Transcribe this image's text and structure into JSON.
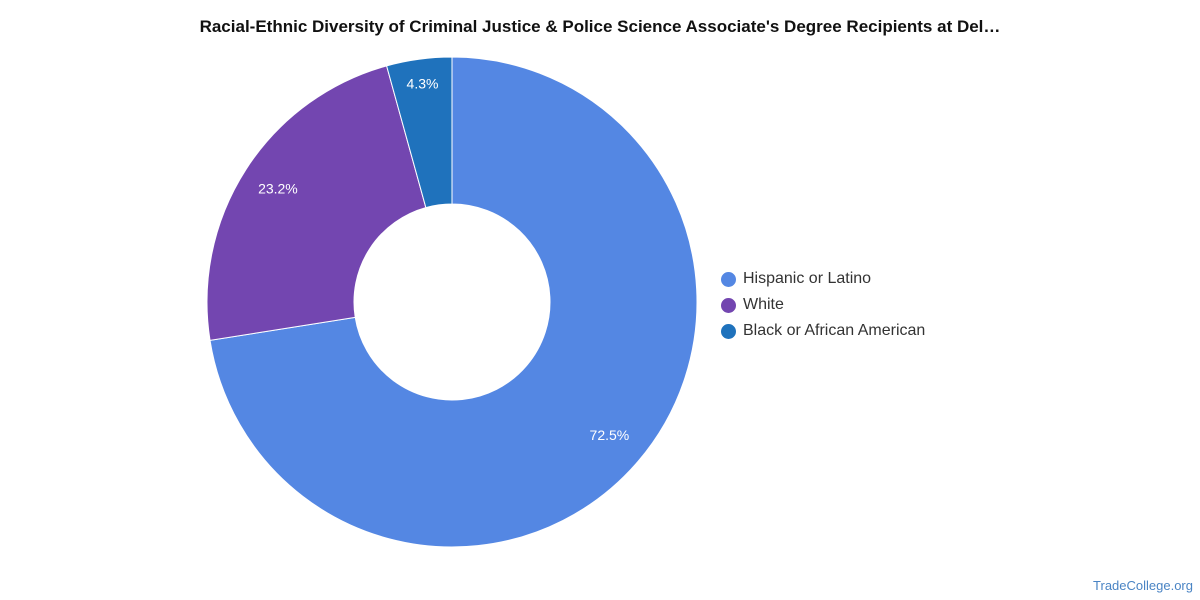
{
  "chart_data": {
    "type": "pie",
    "title": "Racial-Ethnic Diversity of Criminal Justice & Police Science Associate's Degree Recipients at Del…",
    "donut": true,
    "legend_position": "right",
    "series": [
      {
        "name": "Hispanic or Latino",
        "value": 72.5,
        "label": "72.5%",
        "color": "#5487e3"
      },
      {
        "name": "White",
        "value": 23.2,
        "label": "23.2%",
        "color": "#7346b0"
      },
      {
        "name": "Black or African American",
        "value": 4.3,
        "label": "4.3%",
        "color": "#1f72bc"
      }
    ]
  },
  "footer": {
    "source": "TradeCollege.org"
  }
}
